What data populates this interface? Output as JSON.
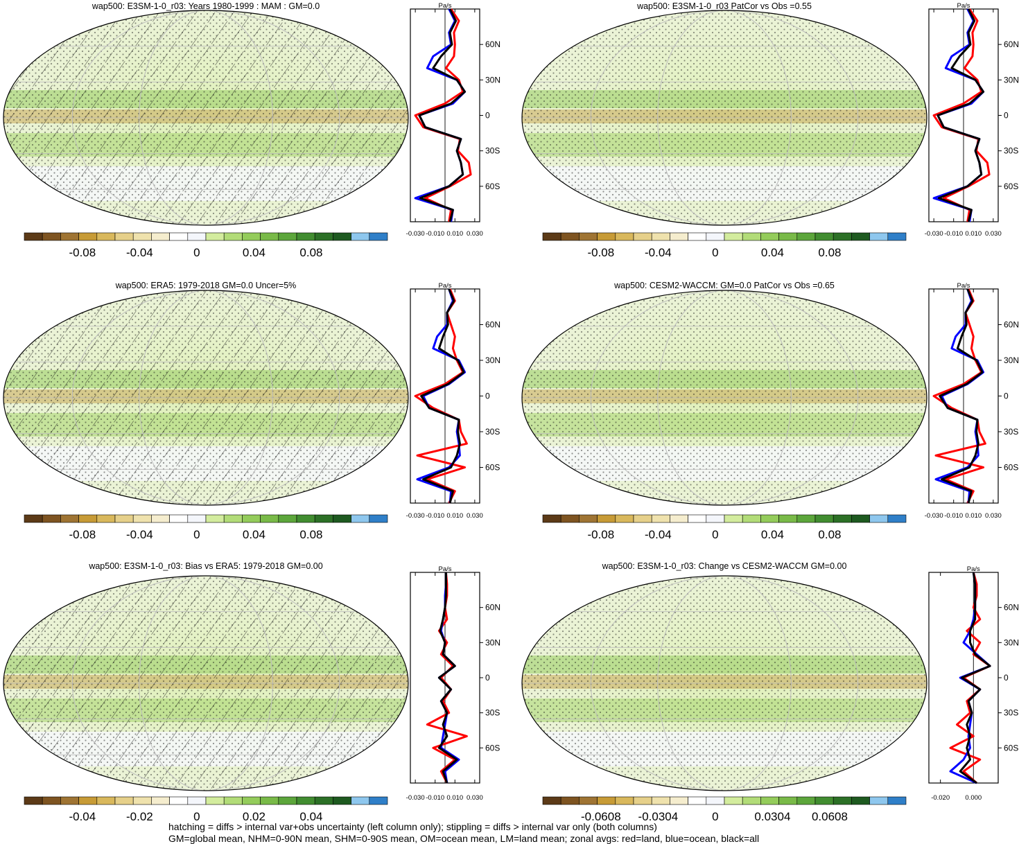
{
  "notes": [
    "hatching = diffs > internal var+obs uncertainty (left column only); stippling = diffs > internal var only (both columns)",
    "GM=global mean, NHM=0-90N mean, SHM=0-90S mean, OM=ocean mean, LM=land mean; zonal avgs: red=land, blue=ocean, black=all"
  ],
  "colors": {
    "land": "#ff0000",
    "ocean": "#0000ff",
    "all": "#000000",
    "colorbar": [
      "#5c3a17",
      "#7e5421",
      "#9f7433",
      "#c79b36",
      "#d9b85c",
      "#e6d08a",
      "#efe2ad",
      "#f5edce",
      "#ffffff",
      "#f4f6fb",
      "#d3ec9e",
      "#b2dc78",
      "#94cc5b",
      "#79ba48",
      "#5ca63b",
      "#418d30",
      "#2c7026",
      "#1e5a20",
      "#8ec7ee",
      "#2f7fc8"
    ]
  },
  "chart_data": [
    {
      "type": "heatmap",
      "title": "wap500: E3SM-1-0_r03: Years 1980-1999 : MAM : GM=0.0",
      "colorbar_labels": [
        "-0.08",
        "-0.04",
        "0",
        "0.04",
        "0.08"
      ],
      "hatching": true,
      "zonal_profile": {
        "type": "line",
        "unit": "Pa/s",
        "x_ticks": [
          "-0.030",
          "-0.010",
          "0.010",
          "0.030"
        ],
        "xlim": [
          -0.035,
          0.035
        ],
        "lat_ticks": [
          "60N",
          "30N",
          "0",
          "30S",
          "60S"
        ],
        "ylim": [
          -90,
          90
        ],
        "lat": [
          -90,
          -80,
          -70,
          -60,
          -50,
          -40,
          -30,
          -20,
          -10,
          0,
          10,
          20,
          30,
          40,
          50,
          60,
          70,
          80,
          90
        ],
        "series": [
          {
            "values": [
              0.004,
              0.006,
              -0.02,
              0.005,
              0.026,
              0.024,
              0.013,
              0.015,
              -0.022,
              -0.03,
              0.0,
              0.018,
              0.014,
              0.001,
              0.009,
              0.01,
              0.009,
              0.014,
              0.006
            ]
          },
          {
            "values": [
              0.006,
              0.008,
              -0.03,
              0.004,
              0.018,
              0.016,
              0.012,
              0.016,
              -0.02,
              -0.026,
              0.008,
              0.02,
              0.012,
              -0.018,
              -0.012,
              0.006,
              0.004,
              0.01,
              0.004
            ]
          },
          {
            "values": [
              0.005,
              0.008,
              -0.025,
              0.004,
              0.018,
              0.016,
              0.012,
              0.016,
              -0.02,
              -0.026,
              0.006,
              0.02,
              0.012,
              -0.012,
              -0.004,
              0.007,
              0.005,
              0.011,
              0.005
            ]
          }
        ]
      }
    },
    {
      "type": "heatmap",
      "title": "wap500: E3SM-1-0_r03 PatCor vs Obs =0.55",
      "colorbar_labels": [
        "-0.08",
        "-0.04",
        "0",
        "0.04",
        "0.08"
      ],
      "hatching": false,
      "zonal_profile": {
        "type": "line",
        "unit": "Pa/s",
        "x_ticks": [
          "-0.030",
          "-0.010",
          "0.010",
          "0.030"
        ],
        "xlim": [
          -0.035,
          0.035
        ],
        "lat_ticks": [
          "60N",
          "30N",
          "0",
          "30S",
          "60S"
        ],
        "ylim": [
          -90,
          90
        ],
        "lat": [
          -90,
          -80,
          -70,
          -60,
          -50,
          -40,
          -30,
          -20,
          -10,
          0,
          10,
          20,
          30,
          40,
          50,
          60,
          70,
          80,
          90
        ],
        "series": [
          {
            "values": [
              0.004,
              0.006,
              -0.02,
              0.005,
              0.026,
              0.024,
              0.013,
              0.015,
              -0.022,
              -0.03,
              0.0,
              0.018,
              0.014,
              0.001,
              0.009,
              0.01,
              0.009,
              0.014,
              0.006
            ]
          },
          {
            "values": [
              0.006,
              0.008,
              -0.03,
              0.004,
              0.018,
              0.016,
              0.012,
              0.016,
              -0.02,
              -0.026,
              0.008,
              0.02,
              0.012,
              -0.018,
              -0.012,
              0.006,
              0.004,
              0.01,
              0.004
            ]
          },
          {
            "values": [
              0.005,
              0.008,
              -0.025,
              0.004,
              0.018,
              0.016,
              0.012,
              0.016,
              -0.02,
              -0.026,
              0.006,
              0.02,
              0.012,
              -0.012,
              -0.004,
              0.007,
              0.005,
              0.011,
              0.005
            ]
          }
        ]
      }
    },
    {
      "type": "heatmap",
      "title": "wap500: ERA5: 1979-2018 GM=0.0 Uncer=5%",
      "colorbar_labels": [
        "-0.08",
        "-0.04",
        "0",
        "0.04",
        "0.08"
      ],
      "hatching": true,
      "zonal_profile": {
        "type": "line",
        "unit": "Pa/s",
        "x_ticks": [
          "-0.030",
          "-0.010",
          "0.010",
          "0.030"
        ],
        "xlim": [
          -0.035,
          0.035
        ],
        "lat_ticks": [
          "60N",
          "30N",
          "0",
          "30S",
          "60S"
        ],
        "ylim": [
          -90,
          90
        ],
        "lat": [
          -90,
          -80,
          -70,
          -60,
          -50,
          -40,
          -30,
          -20,
          -10,
          0,
          10,
          20,
          30,
          40,
          50,
          60,
          70,
          80,
          90
        ],
        "series": [
          {
            "values": [
              0.004,
              0.01,
              -0.018,
              0.02,
              -0.028,
              0.022,
              0.016,
              0.014,
              -0.012,
              -0.03,
              0.0,
              0.018,
              0.012,
              0.008,
              0.01,
              0.006,
              0.002,
              0.01,
              0.005
            ]
          },
          {
            "values": [
              0.005,
              0.006,
              -0.028,
              0.004,
              0.015,
              0.014,
              0.012,
              0.014,
              -0.016,
              -0.022,
              0.004,
              0.02,
              0.014,
              -0.012,
              -0.008,
              0.002,
              0.002,
              0.008,
              0.004
            ]
          },
          {
            "values": [
              0.005,
              0.008,
              -0.022,
              0.006,
              0.012,
              0.015,
              0.013,
              0.014,
              -0.016,
              -0.024,
              0.003,
              0.019,
              0.013,
              -0.006,
              -0.002,
              0.003,
              0.002,
              0.009,
              0.004
            ]
          }
        ]
      }
    },
    {
      "type": "heatmap",
      "title": "wap500: CESM2-WACCM: GM=0.0 PatCor vs Obs =0.65",
      "colorbar_labels": [
        "-0.08",
        "-0.04",
        "0",
        "0.04",
        "0.08"
      ],
      "hatching": false,
      "zonal_profile": {
        "type": "line",
        "unit": "Pa/s",
        "x_ticks": [
          "-0.030",
          "-0.010",
          "0.010",
          "0.030"
        ],
        "xlim": [
          -0.035,
          0.035
        ],
        "lat_ticks": [
          "60N",
          "30N",
          "0",
          "30S",
          "60S"
        ],
        "ylim": [
          -90,
          90
        ],
        "lat": [
          -90,
          -80,
          -70,
          -60,
          -50,
          -40,
          -30,
          -20,
          -10,
          0,
          10,
          20,
          30,
          40,
          50,
          60,
          70,
          80,
          90
        ],
        "series": [
          {
            "values": [
              0.004,
              0.01,
              -0.018,
              0.02,
              -0.028,
              0.022,
              0.016,
              0.014,
              -0.012,
              -0.03,
              0.0,
              0.018,
              0.012,
              0.008,
              0.01,
              0.006,
              0.002,
              0.01,
              0.005
            ]
          },
          {
            "values": [
              0.005,
              0.006,
              -0.028,
              0.004,
              0.015,
              0.014,
              0.012,
              0.014,
              -0.016,
              -0.022,
              0.004,
              0.02,
              0.014,
              -0.012,
              -0.008,
              0.002,
              0.002,
              0.008,
              0.004
            ]
          },
          {
            "values": [
              0.005,
              0.008,
              -0.022,
              0.006,
              0.012,
              0.015,
              0.013,
              0.014,
              -0.016,
              -0.024,
              0.003,
              0.019,
              0.013,
              -0.006,
              -0.002,
              0.003,
              0.002,
              0.009,
              0.004
            ]
          }
        ]
      }
    },
    {
      "type": "heatmap",
      "title": "wap500: E3SM-1-0_r03: Bias vs ERA5: 1979-2018 GM=0.00",
      "colorbar_labels": [
        "-0.04",
        "-0.02",
        "0",
        "0.02",
        "0.04"
      ],
      "hatching": true,
      "zonal_profile": {
        "type": "line",
        "unit": "Pa/s",
        "x_ticks": [
          "-0.030",
          "-0.010",
          "0.010",
          "0.030"
        ],
        "xlim": [
          -0.035,
          0.035
        ],
        "lat_ticks": [
          "60N",
          "30N",
          "0",
          "30S",
          "60S"
        ],
        "ylim": [
          -90,
          90
        ],
        "lat": [
          -90,
          -80,
          -70,
          -60,
          -50,
          -40,
          -30,
          -20,
          -10,
          0,
          10,
          20,
          30,
          40,
          50,
          60,
          70,
          80,
          90
        ],
        "series": [
          {
            "values": [
              0.002,
              -0.004,
              0.01,
              -0.012,
              0.022,
              -0.018,
              0.004,
              -0.002,
              0.006,
              -0.004,
              0.008,
              -0.004,
              0.002,
              -0.006,
              0.002,
              0.0,
              0.002,
              0.002,
              0.001
            ]
          },
          {
            "values": [
              0.002,
              0.0,
              0.014,
              -0.004,
              -0.002,
              0.0,
              0.002,
              -0.004,
              0.006,
              -0.006,
              0.01,
              -0.002,
              0.0,
              -0.004,
              -0.002,
              0.0,
              0.0,
              0.001,
              0.001
            ]
          },
          {
            "values": [
              0.002,
              -0.002,
              0.012,
              -0.006,
              0.002,
              -0.002,
              0.002,
              -0.004,
              0.006,
              -0.006,
              0.01,
              -0.002,
              0.0,
              -0.005,
              -0.002,
              0.0,
              0.001,
              0.001,
              0.001
            ]
          }
        ]
      }
    },
    {
      "type": "heatmap",
      "title": "wap500: E3SM-1-0_r03: Change vs CESM2-WACCM GM=0.00",
      "colorbar_labels": [
        "-0.0608",
        "-0.0304",
        "0",
        "0.0304",
        "0.0608"
      ],
      "hatching": false,
      "zonal_profile": {
        "type": "line",
        "unit": "Pa/s",
        "x_ticks": [
          "-0.020",
          "0.000"
        ],
        "xlim": [
          -0.027,
          0.015
        ],
        "lat_ticks": [
          "60N",
          "30N",
          "0",
          "30S",
          "60S"
        ],
        "ylim": [
          -90,
          90
        ],
        "lat": [
          -90,
          -80,
          -70,
          -60,
          -50,
          -40,
          -30,
          -20,
          -10,
          0,
          10,
          20,
          30,
          40,
          50,
          60,
          70,
          80,
          90
        ],
        "series": [
          {
            "values": [
              0.002,
              -0.006,
              0.004,
              -0.014,
              0.0,
              -0.01,
              -0.002,
              -0.004,
              0.004,
              -0.006,
              0.01,
              0.0,
              0.004,
              -0.004,
              0.004,
              0.0,
              0.002,
              0.002,
              0.0
            ]
          },
          {
            "values": [
              0.002,
              -0.014,
              -0.006,
              -0.002,
              -0.003,
              -0.002,
              -0.001,
              -0.003,
              0.004,
              -0.008,
              0.01,
              0.002,
              -0.006,
              -0.002,
              0.0,
              0.001,
              0.001,
              0.001,
              0.0
            ]
          },
          {
            "values": [
              0.002,
              -0.008,
              -0.002,
              -0.004,
              -0.002,
              -0.004,
              -0.001,
              -0.003,
              0.004,
              -0.007,
              0.01,
              0.001,
              -0.002,
              -0.002,
              0.001,
              0.001,
              0.001,
              0.001,
              0.0
            ]
          }
        ]
      }
    }
  ]
}
